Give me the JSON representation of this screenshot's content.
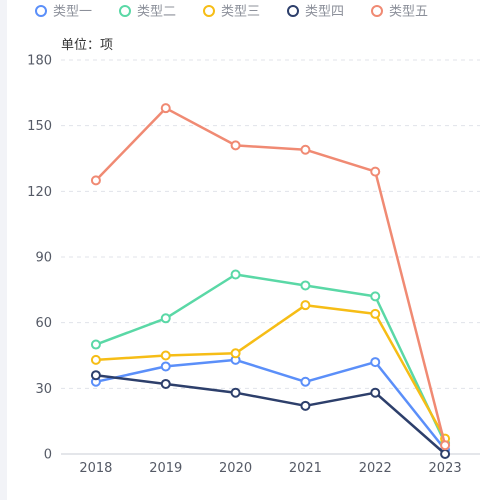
{
  "chart_data": {
    "type": "line",
    "unit_label": "单位：项",
    "categories": [
      "2018",
      "2019",
      "2020",
      "2021",
      "2022",
      "2023"
    ],
    "ylim": [
      0,
      180
    ],
    "yticks": [
      0,
      30,
      60,
      90,
      120,
      150,
      180
    ],
    "grid": true,
    "legend_position": "top",
    "series": [
      {
        "name": "类型一",
        "color": "#5b8ff9",
        "values": [
          33,
          40,
          43,
          33,
          42,
          2
        ]
      },
      {
        "name": "类型二",
        "color": "#5ad8a6",
        "values": [
          50,
          62,
          82,
          77,
          72,
          5
        ]
      },
      {
        "name": "类型三",
        "color": "#f6bd16",
        "values": [
          43,
          45,
          46,
          68,
          64,
          7
        ]
      },
      {
        "name": "类型四",
        "color": "#2d3f6b",
        "values": [
          36,
          32,
          28,
          22,
          28,
          0
        ]
      },
      {
        "name": "类型五",
        "color": "#f08a73",
        "values": [
          125,
          158,
          141,
          139,
          129,
          4
        ]
      }
    ]
  }
}
